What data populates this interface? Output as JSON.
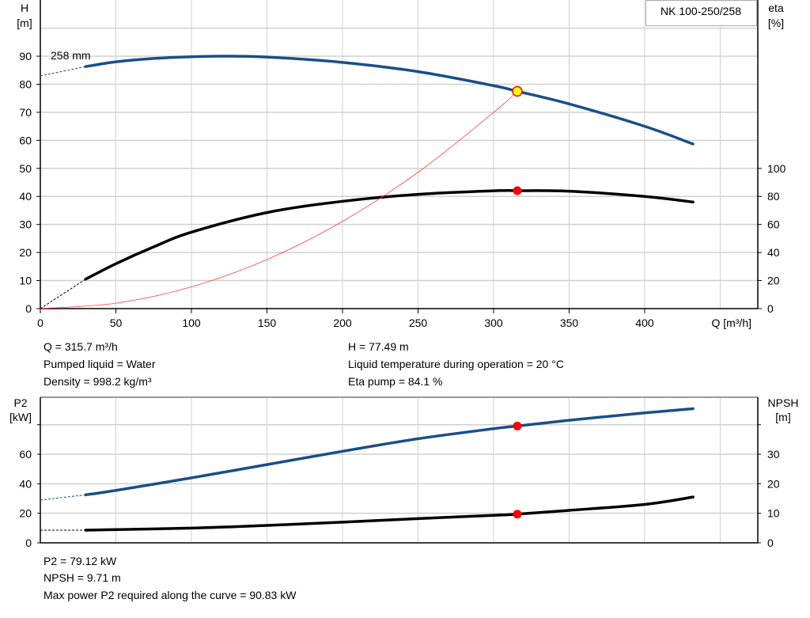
{
  "pump_label": "NK 100-250/258",
  "impeller_label": "258 mm",
  "colors": {
    "head": "#1a4f85",
    "eta": "#000000",
    "system": "#ff4040",
    "p2": "#1a4f85",
    "npsh": "#000000",
    "duty_point": "#ff0000",
    "duty_point_fill": "#ffff00",
    "grid": "#d0d0d0"
  },
  "chart_data": [
    {
      "type": "line",
      "xlabel": "Q [m³/h]",
      "ylabel_left": [
        "H",
        "[m]"
      ],
      "ylabel_right": [
        "eta",
        "[%]"
      ],
      "xlim": [
        0,
        475
      ],
      "ylim_left": [
        0,
        100
      ],
      "ylim_right_ticks": [
        0,
        20,
        40,
        60,
        80,
        100
      ],
      "x_ticks": [
        0,
        50,
        100,
        150,
        200,
        250,
        300,
        350,
        400
      ],
      "y_ticks_left": [
        0,
        10,
        20,
        30,
        40,
        50,
        60,
        70,
        80,
        90
      ],
      "grid": true,
      "series": [
        {
          "key": "head",
          "axis": "left",
          "x": [
            30,
            50,
            75,
            100,
            120,
            150,
            200,
            250,
            300,
            315.7,
            350,
            400,
            432
          ],
          "y": [
            86.3,
            88,
            89.2,
            89.8,
            90,
            89.7,
            87.8,
            84.5,
            79.5,
            77.49,
            73,
            65,
            58.7
          ],
          "extrapolated": {
            "x": [
              0,
              30
            ],
            "y": [
              83,
              86.3
            ]
          }
        },
        {
          "key": "eta",
          "axis": "right",
          "x": [
            30,
            50,
            75,
            100,
            150,
            200,
            250,
            300,
            315.7,
            350,
            400,
            432
          ],
          "y": [
            21,
            32,
            44,
            54.5,
            68.5,
            76.5,
            81.5,
            84,
            84.1,
            83.7,
            80,
            76
          ],
          "extrapolated": {
            "x": [
              0,
              30
            ],
            "y": [
              0,
              21
            ]
          }
        },
        {
          "key": "system",
          "axis": "left",
          "x": [
            0,
            50,
            100,
            150,
            200,
            250,
            300,
            315.7
          ],
          "y": [
            0,
            1.94,
            7.77,
            17.49,
            31.1,
            48.6,
            69.97,
            77.49
          ]
        }
      ],
      "duty_points": [
        {
          "x": 315.7,
          "y": 77.49,
          "axis": "left"
        },
        {
          "x": 315.7,
          "y": 84.1,
          "axis": "right"
        }
      ]
    },
    {
      "type": "line",
      "ylabel_left": [
        "P2",
        "[kW]"
      ],
      "ylabel_right": [
        "NPSH",
        "[m]"
      ],
      "xlim": [
        0,
        475
      ],
      "ylim_left": [
        0,
        80
      ],
      "ylim_right": [
        0,
        40
      ],
      "y_ticks_left": [
        0,
        20,
        40,
        60
      ],
      "y_ticks_right": [
        0,
        10,
        20,
        30
      ],
      "grid": true,
      "series": [
        {
          "key": "p2",
          "axis": "left",
          "x": [
            30,
            50,
            100,
            150,
            200,
            250,
            300,
            315.7,
            350,
            400,
            432
          ],
          "y": [
            32.5,
            35.5,
            44,
            53,
            62,
            70.5,
            77.3,
            79.12,
            83,
            88,
            90.83
          ],
          "extrapolated": {
            "x": [
              0,
              30
            ],
            "y": [
              29,
              32.5
            ]
          }
        },
        {
          "key": "npsh",
          "axis": "right",
          "x": [
            30,
            100,
            150,
            200,
            250,
            300,
            315.7,
            350,
            400,
            432
          ],
          "y": [
            4.3,
            5,
            5.9,
            7,
            8.2,
            9.3,
            9.71,
            11,
            13,
            15.5
          ],
          "extrapolated": {
            "x": [
              0,
              30
            ],
            "y": [
              4.3,
              4.3
            ]
          }
        }
      ],
      "duty_points": [
        {
          "x": 315.7,
          "y": 79.12,
          "axis": "left"
        },
        {
          "x": 315.7,
          "y": 9.71,
          "axis": "right"
        }
      ]
    }
  ],
  "info_top": {
    "q": "Q = 315.7 m³/h",
    "liquid": "Pumped liquid = Water",
    "density": "Density = 998.2 kg/m³",
    "h": "H = 77.49 m",
    "temp": "Liquid temperature during operation = 20 °C",
    "eta": "Eta pump = 84.1 %"
  },
  "info_bottom": {
    "p2": "P2 = 79.12 kW",
    "npsh": "NPSH = 9.71 m",
    "max_p2": "Max power P2 required along the curve = 90.83 kW"
  }
}
